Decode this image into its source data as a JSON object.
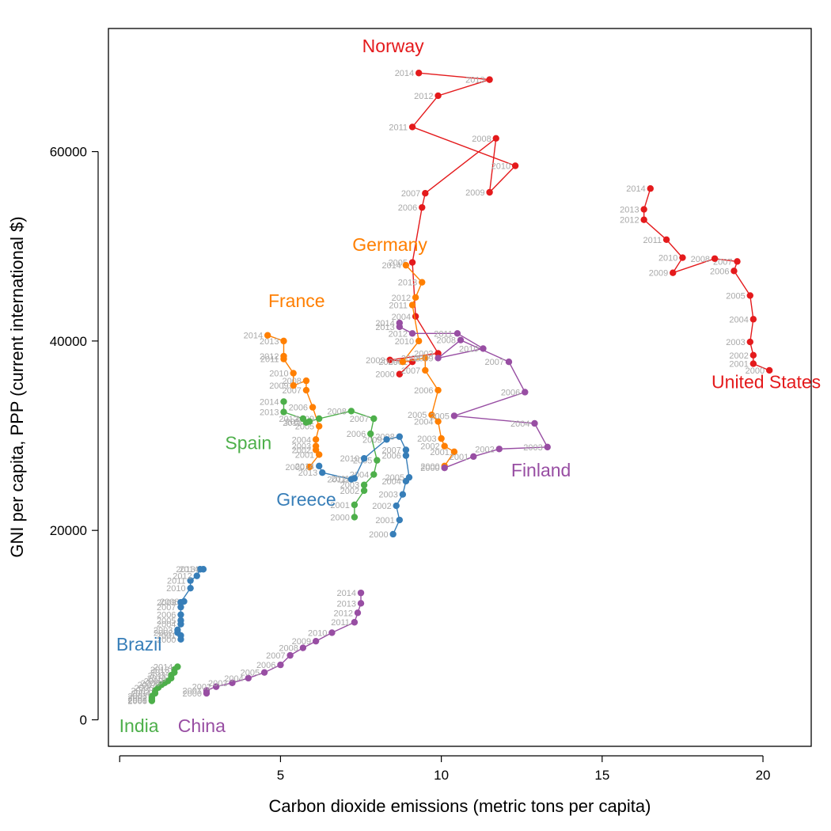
{
  "chart_data": {
    "type": "line",
    "xlabel": "Carbon dioxide emissions (metric tons per capita)",
    "ylabel": "GNI per capita, PPP (current international $)",
    "xlim": [
      -0.35,
      21.5
    ],
    "ylim": [
      -2800,
      73000
    ],
    "xticks": [
      5,
      10,
      15,
      20
    ],
    "xtick_labels": [
      "5",
      "10",
      "15",
      "20"
    ],
    "yticks": [
      0,
      20000,
      40000,
      60000
    ],
    "ytick_labels": [
      "0",
      "20000",
      "40000",
      "60000"
    ],
    "grid": false,
    "legend": "none",
    "series": [
      {
        "name": "Norway",
        "color": "#e41a1c",
        "label_at": [
          8.5,
          70500
        ],
        "points": [
          {
            "year": "2000",
            "x": 8.7,
            "y": 36500
          },
          {
            "year": "2001",
            "x": 9.1,
            "y": 37800
          },
          {
            "year": "2002",
            "x": 8.4,
            "y": 38000
          },
          {
            "year": "2003",
            "x": 9.9,
            "y": 38700
          },
          {
            "year": "2004",
            "x": 9.2,
            "y": 42600
          },
          {
            "year": "2005",
            "x": 9.1,
            "y": 48300
          },
          {
            "year": "2006",
            "x": 9.4,
            "y": 54100
          },
          {
            "year": "2007",
            "x": 9.5,
            "y": 55600
          },
          {
            "year": "2008",
            "x": 11.7,
            "y": 61400
          },
          {
            "year": "2009",
            "x": 11.5,
            "y": 55700
          },
          {
            "year": "2010",
            "x": 12.3,
            "y": 58500
          },
          {
            "year": "2011",
            "x": 9.1,
            "y": 62600
          },
          {
            "year": "2012",
            "x": 9.9,
            "y": 65900
          },
          {
            "year": "2013",
            "x": 11.5,
            "y": 67600
          },
          {
            "year": "2014",
            "x": 9.3,
            "y": 68300
          }
        ]
      },
      {
        "name": "United States",
        "color": "#e41a1c",
        "label_at": [
          20.1,
          35000
        ],
        "points": [
          {
            "year": "2000",
            "x": 20.2,
            "y": 36900
          },
          {
            "year": "2001",
            "x": 19.7,
            "y": 37600
          },
          {
            "year": "2002",
            "x": 19.7,
            "y": 38500
          },
          {
            "year": "2003",
            "x": 19.6,
            "y": 39900
          },
          {
            "year": "2004",
            "x": 19.7,
            "y": 42300
          },
          {
            "year": "2005",
            "x": 19.6,
            "y": 44800
          },
          {
            "year": "2006",
            "x": 19.1,
            "y": 47400
          },
          {
            "year": "2007",
            "x": 19.2,
            "y": 48400
          },
          {
            "year": "2008",
            "x": 18.5,
            "y": 48700
          },
          {
            "year": "2009",
            "x": 17.2,
            "y": 47200
          },
          {
            "year": "2010",
            "x": 17.5,
            "y": 48800
          },
          {
            "year": "2011",
            "x": 17.0,
            "y": 50700
          },
          {
            "year": "2012",
            "x": 16.3,
            "y": 52800
          },
          {
            "year": "2013",
            "x": 16.3,
            "y": 53900
          },
          {
            "year": "2014",
            "x": 16.5,
            "y": 56100
          }
        ]
      },
      {
        "name": "Germany",
        "color": "#ff7f00",
        "label_at": [
          8.4,
          49500
        ],
        "points": [
          {
            "year": "2000",
            "x": 10.1,
            "y": 26800
          },
          {
            "year": "2001",
            "x": 10.4,
            "y": 28300
          },
          {
            "year": "2002",
            "x": 10.1,
            "y": 28900
          },
          {
            "year": "2003",
            "x": 10.0,
            "y": 29700
          },
          {
            "year": "2004",
            "x": 9.9,
            "y": 31500
          },
          {
            "year": "2005",
            "x": 9.7,
            "y": 32200
          },
          {
            "year": "2006",
            "x": 9.9,
            "y": 34800
          },
          {
            "year": "2007",
            "x": 9.5,
            "y": 36900
          },
          {
            "year": "2008",
            "x": 9.5,
            "y": 38200
          },
          {
            "year": "2009",
            "x": 8.8,
            "y": 37800
          },
          {
            "year": "2010",
            "x": 9.3,
            "y": 40000
          },
          {
            "year": "2011",
            "x": 9.1,
            "y": 43800
          },
          {
            "year": "2012",
            "x": 9.2,
            "y": 44600
          },
          {
            "year": "2013",
            "x": 9.4,
            "y": 46200
          },
          {
            "year": "2014",
            "x": 8.9,
            "y": 48000
          }
        ]
      },
      {
        "name": "France",
        "color": "#ff7f00",
        "label_at": [
          5.5,
          43600
        ],
        "points": [
          {
            "year": "2000",
            "x": 5.9,
            "y": 26700
          },
          {
            "year": "2001",
            "x": 6.2,
            "y": 28000
          },
          {
            "year": "2002",
            "x": 6.1,
            "y": 28500
          },
          {
            "year": "2003",
            "x": 6.1,
            "y": 28900
          },
          {
            "year": "2004",
            "x": 6.1,
            "y": 29600
          },
          {
            "year": "2005",
            "x": 6.2,
            "y": 31000
          },
          {
            "year": "2006",
            "x": 6.0,
            "y": 33000
          },
          {
            "year": "2007",
            "x": 5.8,
            "y": 34800
          },
          {
            "year": "2008",
            "x": 5.8,
            "y": 35800
          },
          {
            "year": "2009",
            "x": 5.4,
            "y": 35300
          },
          {
            "year": "2010",
            "x": 5.4,
            "y": 36600
          },
          {
            "year": "2011",
            "x": 5.1,
            "y": 38100
          },
          {
            "year": "2012",
            "x": 5.1,
            "y": 38400
          },
          {
            "year": "2013",
            "x": 5.1,
            "y": 40000
          },
          {
            "year": "2014",
            "x": 4.6,
            "y": 40600
          }
        ]
      },
      {
        "name": "Finland",
        "color": "#984ea3",
        "label_at": [
          13.1,
          25700
        ],
        "points": [
          {
            "year": "2000",
            "x": 10.1,
            "y": 26600
          },
          {
            "year": "2001",
            "x": 11.0,
            "y": 27800
          },
          {
            "year": "2002",
            "x": 11.8,
            "y": 28600
          },
          {
            "year": "2003",
            "x": 13.3,
            "y": 28800
          },
          {
            "year": "2004",
            "x": 12.9,
            "y": 31300
          },
          {
            "year": "2005",
            "x": 10.4,
            "y": 32100
          },
          {
            "year": "2006",
            "x": 12.6,
            "y": 34600
          },
          {
            "year": "2007",
            "x": 12.1,
            "y": 37800
          },
          {
            "year": "2008",
            "x": 10.6,
            "y": 40100
          },
          {
            "year": "2009",
            "x": 9.9,
            "y": 38200
          },
          {
            "year": "2010",
            "x": 11.3,
            "y": 39200
          },
          {
            "year": "2011",
            "x": 10.5,
            "y": 40800
          },
          {
            "year": "2012",
            "x": 9.1,
            "y": 40800
          },
          {
            "year": "2013",
            "x": 8.7,
            "y": 41500
          },
          {
            "year": "2014",
            "x": 8.7,
            "y": 41900
          }
        ]
      },
      {
        "name": "Spain",
        "color": "#4daf4a",
        "label_at": [
          4.0,
          28600
        ],
        "points": [
          {
            "year": "2000",
            "x": 7.3,
            "y": 21400
          },
          {
            "year": "2001",
            "x": 7.3,
            "y": 22700
          },
          {
            "year": "2002",
            "x": 7.6,
            "y": 24200
          },
          {
            "year": "2003",
            "x": 7.6,
            "y": 24800
          },
          {
            "year": "2004",
            "x": 7.9,
            "y": 25900
          },
          {
            "year": "2005",
            "x": 8.0,
            "y": 27400
          },
          {
            "year": "2006",
            "x": 7.8,
            "y": 30200
          },
          {
            "year": "2007",
            "x": 7.9,
            "y": 31800
          },
          {
            "year": "2008",
            "x": 7.2,
            "y": 32600
          },
          {
            "year": "2009",
            "x": 6.2,
            "y": 31800
          },
          {
            "year": "2010",
            "x": 5.9,
            "y": 31500
          },
          {
            "year": "2011",
            "x": 5.8,
            "y": 31400
          },
          {
            "year": "2012",
            "x": 5.7,
            "y": 31800
          },
          {
            "year": "2013",
            "x": 5.1,
            "y": 32500
          },
          {
            "year": "2014",
            "x": 5.1,
            "y": 33600
          }
        ]
      },
      {
        "name": "Greece",
        "color": "#377eb8",
        "label_at": [
          5.8,
          22600
        ],
        "points": [
          {
            "year": "2000",
            "x": 8.5,
            "y": 19600
          },
          {
            "year": "2001",
            "x": 8.7,
            "y": 21100
          },
          {
            "year": "2002",
            "x": 8.6,
            "y": 22600
          },
          {
            "year": "2003",
            "x": 8.8,
            "y": 23800
          },
          {
            "year": "2004",
            "x": 8.9,
            "y": 25200
          },
          {
            "year": "2005",
            "x": 9.0,
            "y": 25600
          },
          {
            "year": "2006",
            "x": 8.9,
            "y": 27900
          },
          {
            "year": "2007",
            "x": 8.9,
            "y": 28500
          },
          {
            "year": "2008",
            "x": 8.7,
            "y": 29900
          },
          {
            "year": "2009",
            "x": 8.3,
            "y": 29600
          },
          {
            "year": "2010",
            "x": 7.6,
            "y": 27600
          },
          {
            "year": "2011",
            "x": 7.3,
            "y": 25500
          },
          {
            "year": "2012",
            "x": 7.2,
            "y": 25400
          },
          {
            "year": "2013",
            "x": 6.3,
            "y": 26100
          },
          {
            "year": "2014",
            "x": 6.2,
            "y": 26800
          }
        ]
      },
      {
        "name": "Brazil",
        "color": "#377eb8",
        "label_at": [
          0.6,
          7300
        ],
        "points": [
          {
            "year": "2000",
            "x": 1.9,
            "y": 8500
          },
          {
            "year": "2001",
            "x": 1.9,
            "y": 8900
          },
          {
            "year": "2002",
            "x": 1.8,
            "y": 9200
          },
          {
            "year": "2003",
            "x": 1.8,
            "y": 9500
          },
          {
            "year": "2004",
            "x": 1.9,
            "y": 10100
          },
          {
            "year": "2005",
            "x": 1.9,
            "y": 10500
          },
          {
            "year": "2006",
            "x": 1.9,
            "y": 11100
          },
          {
            "year": "2007",
            "x": 1.9,
            "y": 11900
          },
          {
            "year": "2008",
            "x": 2.0,
            "y": 12500
          },
          {
            "year": "2009",
            "x": 1.9,
            "y": 12400
          },
          {
            "year": "2010",
            "x": 2.2,
            "y": 13900
          },
          {
            "year": "2011",
            "x": 2.2,
            "y": 14700
          },
          {
            "year": "2012",
            "x": 2.4,
            "y": 15200
          },
          {
            "year": "2013",
            "x": 2.5,
            "y": 15900
          },
          {
            "year": "2014",
            "x": 2.6,
            "y": 15900
          }
        ]
      },
      {
        "name": "India",
        "color": "#4daf4a",
        "label_at": [
          0.6,
          -1300
        ],
        "points": [
          {
            "year": "2000",
            "x": 1.0,
            "y": 2000
          },
          {
            "year": "2001",
            "x": 1.0,
            "y": 2100
          },
          {
            "year": "2002",
            "x": 1.0,
            "y": 2300
          },
          {
            "year": "2003",
            "x": 1.0,
            "y": 2500
          },
          {
            "year": "2004",
            "x": 1.1,
            "y": 2800
          },
          {
            "year": "2005",
            "x": 1.1,
            "y": 3100
          },
          {
            "year": "2006",
            "x": 1.2,
            "y": 3400
          },
          {
            "year": "2007",
            "x": 1.3,
            "y": 3700
          },
          {
            "year": "2008",
            "x": 1.4,
            "y": 3900
          },
          {
            "year": "2009",
            "x": 1.5,
            "y": 4100
          },
          {
            "year": "2010",
            "x": 1.6,
            "y": 4400
          },
          {
            "year": "2011",
            "x": 1.6,
            "y": 4700
          },
          {
            "year": "2012",
            "x": 1.7,
            "y": 5000
          },
          {
            "year": "2013",
            "x": 1.7,
            "y": 5300
          },
          {
            "year": "2014",
            "x": 1.8,
            "y": 5600
          }
        ]
      },
      {
        "name": "China",
        "color": "#984ea3",
        "label_at": [
          2.55,
          -1300
        ],
        "points": [
          {
            "year": "2000",
            "x": 2.7,
            "y": 2800
          },
          {
            "year": "2001",
            "x": 2.7,
            "y": 3100
          },
          {
            "year": "2002",
            "x": 3.0,
            "y": 3500
          },
          {
            "year": "2003",
            "x": 3.5,
            "y": 3900
          },
          {
            "year": "2004",
            "x": 4.0,
            "y": 4400
          },
          {
            "year": "2005",
            "x": 4.5,
            "y": 5000
          },
          {
            "year": "2006",
            "x": 5.0,
            "y": 5800
          },
          {
            "year": "2007",
            "x": 5.3,
            "y": 6800
          },
          {
            "year": "2008",
            "x": 5.7,
            "y": 7600
          },
          {
            "year": "2009",
            "x": 6.1,
            "y": 8300
          },
          {
            "year": "2010",
            "x": 6.6,
            "y": 9200
          },
          {
            "year": "2011",
            "x": 7.3,
            "y": 10300
          },
          {
            "year": "2012",
            "x": 7.4,
            "y": 11300
          },
          {
            "year": "2013",
            "x": 7.5,
            "y": 12300
          },
          {
            "year": "2014",
            "x": 7.5,
            "y": 13400
          }
        ]
      }
    ]
  }
}
